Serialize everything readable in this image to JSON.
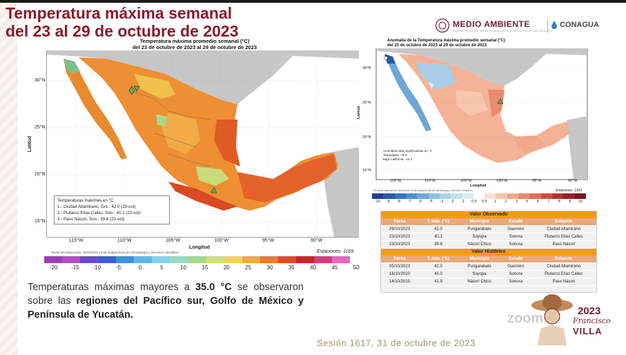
{
  "header": {
    "title_line1": "Temperatura máxima semanal",
    "title_line2": "del 23 al 29 de octubre de 2023",
    "logo_left": "MEDIO AMBIENTE",
    "logo_left_sub": "SECRETARÍA DE MEDIO AMBIENTE Y RECURSOS NATURALES",
    "logo_right": "CONAGUA"
  },
  "map_left": {
    "title1": "Temperatura máxima promedio semanal (°C)",
    "title2": "del 23 de octubre de 2023 al 29 de octubre de 2023",
    "ylabel": "Latitud",
    "xlabel": "Longitud",
    "lat_ticks": [
      "30°N",
      "25°N",
      "20°N",
      "15°N"
    ],
    "lon_ticks": [
      "115°W",
      "110°W",
      "105°W",
      "100°W",
      "95°W",
      "90°W"
    ],
    "legend_title": "Temperaturas máximas en °C",
    "legend_items": [
      "1.- Ciudad Altamirano, Gro.: 42.0 (29-oct)",
      "2.- Plutarco Elías Calles, Son.: 40.1 (23-oct)",
      "3.- Paso Nácori, Son.: 39.8 (23-oct)"
    ],
    "footer_left": "Fecha de elaboración: 30/10/2023 13:56 Subgerencia de Climatología y Servicios Climáticos",
    "footer_right": "Estaciones: 1169",
    "colorbar_labels": [
      "-20",
      "-15",
      "-10",
      "-5",
      "0",
      "5",
      "10",
      "15",
      "20",
      "25",
      "30",
      "35",
      "40",
      "45",
      "50"
    ],
    "colorbar_colors": [
      "#9b3fb5",
      "#b04ec5",
      "#6b4bd1",
      "#3e5ed6",
      "#3f8fe0",
      "#5db6ea",
      "#86d0ea",
      "#9ad9c2",
      "#a6d98b",
      "#cfe27a",
      "#f2d35b",
      "#f4a73f",
      "#ee7a2b",
      "#e34b24",
      "#c9232a",
      "#d9387a",
      "#ef64c0"
    ]
  },
  "map_right": {
    "title1": "Anomalía de la Temperatura máxima promedio semanal (°C)",
    "title2": "del 23 de octubre de 2023 al 29 de octubre de 2023",
    "ylabel": "Latitud",
    "xlabel": "Longitud",
    "lat_ticks": [
      "30°N",
      "25°N",
      "20°N",
      "15°N"
    ],
    "lon_ticks": [
      "115°W",
      "110°W",
      "105°W",
      "100°W",
      "95°W",
      "90°W"
    ],
    "legend_title": "Anomalías Más Significativas en °C",
    "legend_items": [
      "Tamaulipas: +8.9",
      "Baja California: -10.3"
    ],
    "footer_left": "Fecha de elaboración: 30/10/2023 13:56 Subgerencia de Climatología y Servicios Climáticos",
    "footer_right": "Estaciones: 1169",
    "colorbar_labels": [
      "-10",
      "-9",
      "-8",
      "-7",
      "-6",
      "-5",
      "-3",
      "-2",
      "-1",
      "-0.5",
      "0.5",
      "1",
      "2",
      "3",
      "5",
      "6",
      "7",
      "8",
      "9",
      "10"
    ],
    "colorbar_colors": [
      "#1f3f8f",
      "#2a5aa8",
      "#3676be",
      "#4e91cf",
      "#6aa9da",
      "#8cc0e4",
      "#a9d1ea",
      "#c4e0ef",
      "#dbecf5",
      "#ffffff",
      "#fbe0d2",
      "#f7c6ad",
      "#f2a88b",
      "#ea8a6e",
      "#df6b54",
      "#cf4c3f",
      "#b8302e",
      "#982023",
      "#7a131b"
    ]
  },
  "table_observed": {
    "heading": "Valor Observado",
    "columns": [
      "Fecha",
      "T. máx. (°C)",
      "Municipio",
      "Estado",
      "Estación"
    ],
    "rows": [
      [
        "29/10/2023",
        "42.0",
        "Pungarabato",
        "Guerrero",
        "Ciudad Altamirano"
      ],
      [
        "23/10/2023",
        "40.1",
        "Soyopa",
        "Sonora",
        "Plutarco Elías Calles"
      ],
      [
        "23/10/2023",
        "39.8",
        "Nácori Chico",
        "Sonora",
        "Paso Nácori"
      ]
    ]
  },
  "table_historic": {
    "heading": "Valor Histórico",
    "columns": [
      "Fecha",
      "T. máx. (°C)",
      "Municipio",
      "Estado",
      "Estación"
    ],
    "rows": [
      [
        "05/10/2023",
        "42.0",
        "Pungarabato",
        "Guerrero",
        "Ciudad Altamirano"
      ],
      [
        "16/10/2020",
        "45.0",
        "Soyopa",
        "Sonora",
        "Plutarco Elías Calles"
      ],
      [
        "14/10/2015",
        "41.9",
        "Nácori Chico",
        "Sonora",
        "Paso Nácori"
      ]
    ]
  },
  "summary": {
    "part1": "Temperaturas máximas mayores a ",
    "value": "35.0 °C",
    "part2": " se observaron sobre las ",
    "regions": "regiones del Pacífico sur, Golfo de México y Península de Yucatán."
  },
  "footer": {
    "session": "Sesión 1617, 31 de octubre de 2023",
    "year": "2023",
    "name1": "Francisco",
    "name2": "VILLA",
    "watermark": "zoom"
  },
  "colors": {
    "accent": "#8b1a2b",
    "table_header": "#f59a1d",
    "session": "#a8926d"
  }
}
